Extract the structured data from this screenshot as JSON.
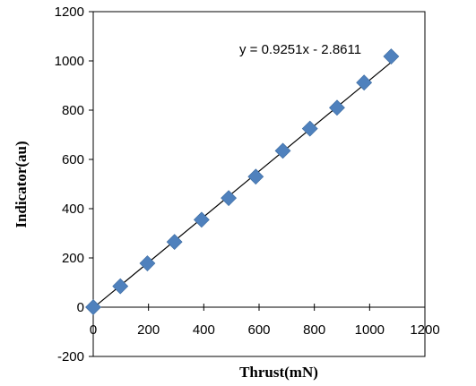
{
  "chart_data": {
    "type": "scatter",
    "xlabel": "Thrust(mN)",
    "ylabel": "Indicator(au)",
    "xlim": [
      0,
      1200
    ],
    "ylim": [
      -200,
      1200
    ],
    "xticks": [
      "0",
      "200",
      "400",
      "600",
      "800",
      "1000",
      "1200"
    ],
    "yticks": [
      "-200",
      "0",
      "200",
      "400",
      "600",
      "800",
      "1000",
      "1200"
    ],
    "grid": false,
    "marker": "diamond",
    "marker_color": "#4f81bd",
    "series": [
      {
        "x": [
          0,
          98,
          196,
          294,
          392,
          490,
          588,
          686,
          784,
          882,
          980,
          1078
        ],
        "y": [
          0,
          85,
          178,
          265,
          355,
          443,
          530,
          635,
          725,
          810,
          912,
          1018
        ]
      }
    ],
    "trendline": {
      "slope": 0.9251,
      "intercept": -2.8611,
      "label": "y = 0.9251x - 2.8611",
      "color": "#000000"
    }
  }
}
